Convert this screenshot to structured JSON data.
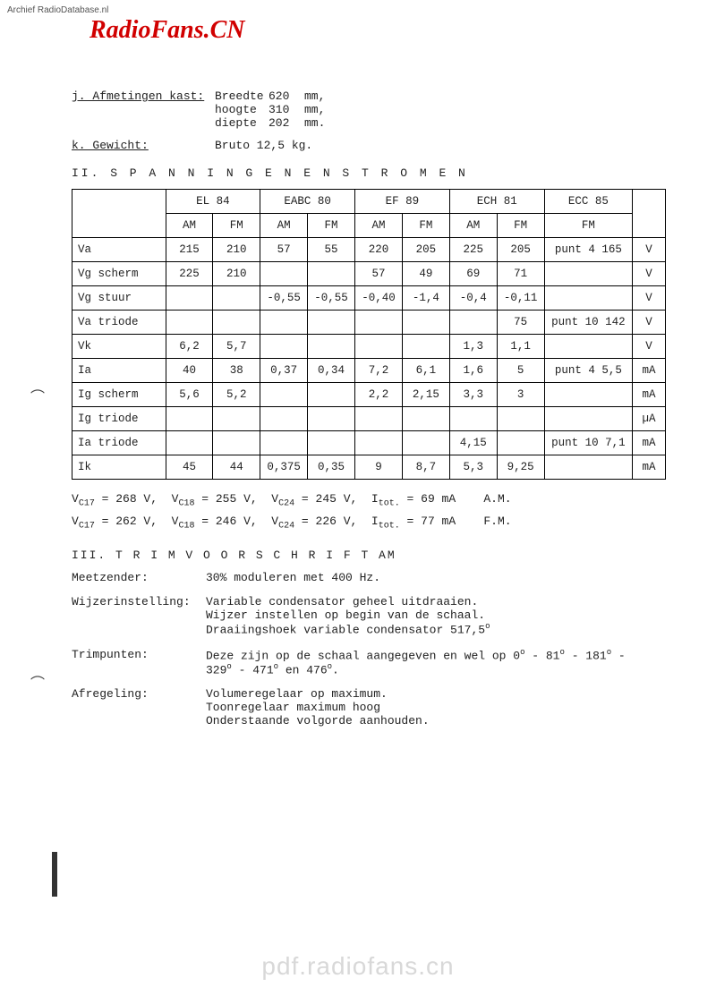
{
  "archief": "Archief RadioDatabase.nl",
  "logo": "RadioFans.CN",
  "watermark": "pdf.radiofans.cn",
  "specs": {
    "j_label": "j. Afmetingen kast:",
    "j_lines": [
      {
        "l": "Breedte",
        "n": "620",
        "u": "mm,"
      },
      {
        "l": "hoogte",
        "n": "310",
        "u": "mm,"
      },
      {
        "l": "diepte",
        "n": "202",
        "u": "mm."
      }
    ],
    "k_label": "k. Gewicht:",
    "k_value": "Bruto 12,5 kg."
  },
  "section2": "II.  S P A N N I N G E N   E N   S T R O M E N",
  "table": {
    "tubes": [
      "EL 84",
      "EABC 80",
      "EF 89",
      "ECH 81",
      "ECC 85"
    ],
    "subcols": [
      "AM",
      "FM",
      "AM",
      "FM",
      "AM",
      "FM",
      "AM",
      "FM",
      "FM"
    ],
    "rows": [
      {
        "label": "Va",
        "c": [
          "215",
          "210",
          "57",
          "55",
          "220",
          "205",
          "225",
          "205",
          "punt 4 165"
        ],
        "u": "V"
      },
      {
        "label": "Vg scherm",
        "c": [
          "225",
          "210",
          "",
          "",
          "57",
          "49",
          "69",
          "71",
          ""
        ],
        "u": "V"
      },
      {
        "label": "Vg stuur",
        "c": [
          "",
          "",
          "-0,55",
          "-0,55",
          "-0,40",
          "-1,4",
          "-0,4",
          "-0,11",
          ""
        ],
        "u": "V"
      },
      {
        "label": "Va triode",
        "c": [
          "",
          "",
          "",
          "",
          "",
          "",
          "",
          "75",
          "punt 10 142"
        ],
        "u": "V"
      },
      {
        "label": "Vk",
        "c": [
          "6,2",
          "5,7",
          "",
          "",
          "",
          "",
          "1,3",
          "1,1",
          ""
        ],
        "u": "V"
      },
      {
        "label": "Ia",
        "c": [
          "40",
          "38",
          "0,37",
          "0,34",
          "7,2",
          "6,1",
          "1,6",
          "5",
          "punt 4  5,5"
        ],
        "u": "mA"
      },
      {
        "label": "Ig scherm",
        "c": [
          "5,6",
          "5,2",
          "",
          "",
          "2,2",
          "2,15",
          "3,3",
          "3",
          ""
        ],
        "u": "mA"
      },
      {
        "label": "Ig triode",
        "c": [
          "",
          "",
          "",
          "",
          "",
          "",
          "",
          "",
          ""
        ],
        "u": "µA"
      },
      {
        "label": "Ia triode",
        "c": [
          "",
          "",
          "",
          "",
          "",
          "",
          "4,15",
          "",
          "punt 10 7,1"
        ],
        "u": "mA"
      },
      {
        "label": "Ik",
        "c": [
          "45",
          "44",
          "0,375",
          "0,35",
          "9",
          "8,7",
          "5,3",
          "9,25",
          ""
        ],
        "u": "mA"
      }
    ],
    "col_widths": {
      "amfm": 44,
      "fm_ecc": 90
    }
  },
  "formulas": [
    {
      "vc17": "268",
      "vc18": "255",
      "vc24": "245",
      "itot": "69",
      "mode": "A.M."
    },
    {
      "vc17": "262",
      "vc18": "246",
      "vc24": "226",
      "itot": "77",
      "mode": "F.M."
    }
  ],
  "section3": "III.  T R I M V O O R S C H R I F T   AM",
  "trim": [
    {
      "l": "Meetzender:",
      "v": "30% moduleren met 400 Hz."
    },
    {
      "l": "Wijzerinstelling:",
      "v": "Variable condensator geheel uitdraaien.\nWijzer instellen op begin van de schaal.\nDraaiingshoek variable condensator 517,5°"
    },
    {
      "l": "Trimpunten:",
      "v": "Deze zijn op de schaal aangegeven en wel op 0° - 81° - 181° - 329° - 471° en 476°."
    },
    {
      "l": "Afregeling:",
      "v": "Volumeregelaar op maximum.\nToonregelaar maximum hoog\nOnderstaande volgorde aanhouden."
    }
  ]
}
